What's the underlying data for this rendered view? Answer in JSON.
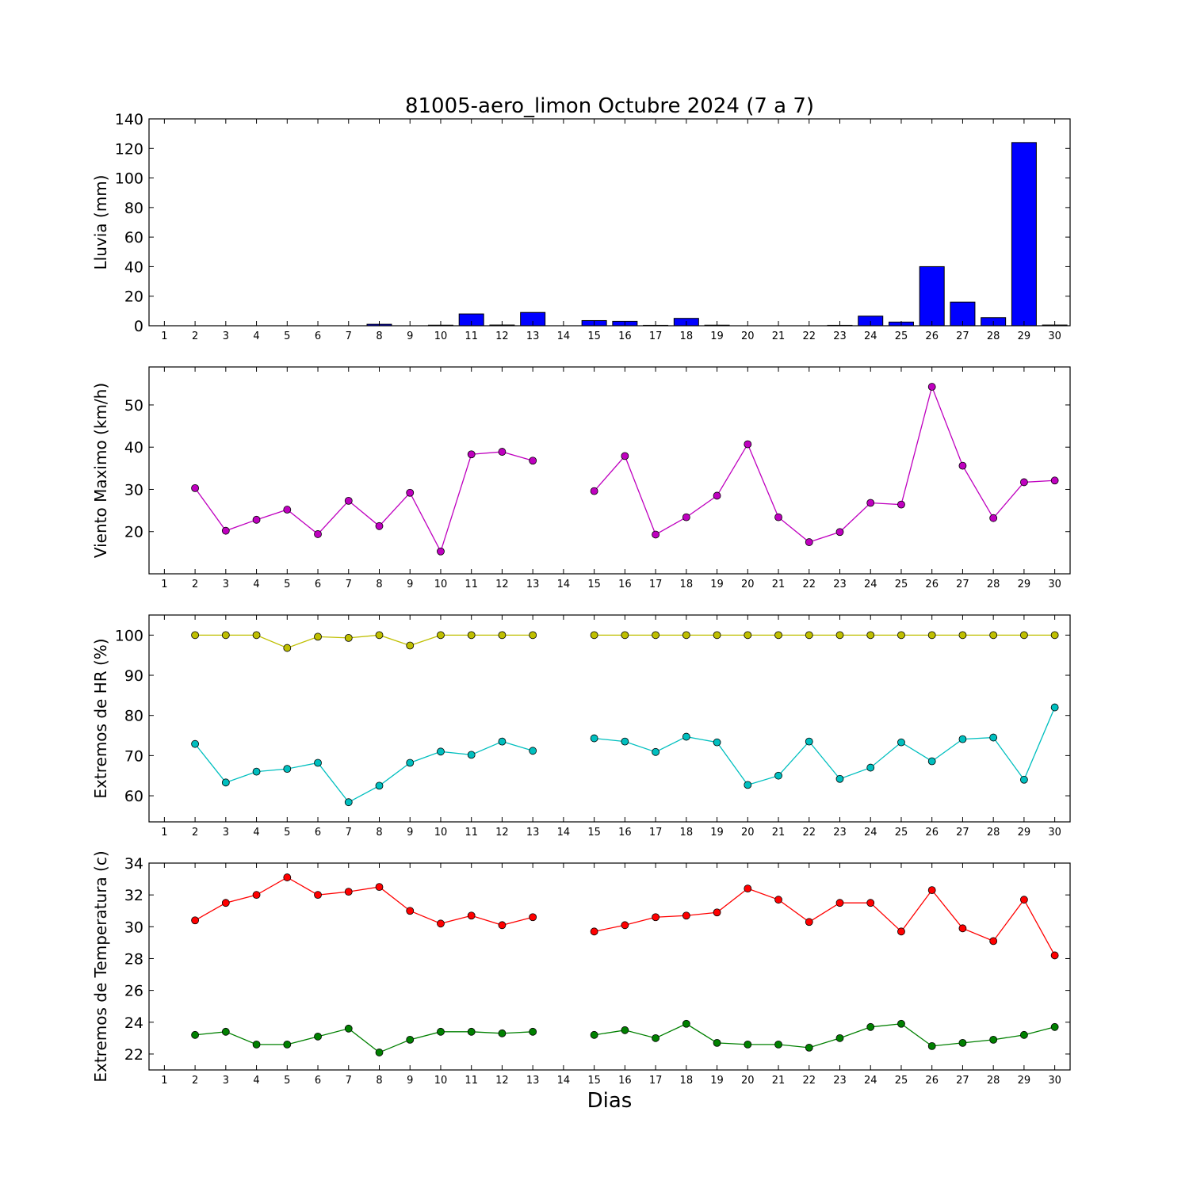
{
  "title": "81005-aero_limon Octubre 2024  (7 a 7)",
  "xlabel": "Dias",
  "x_ticks": [
    1,
    2,
    3,
    4,
    5,
    6,
    7,
    8,
    9,
    10,
    11,
    12,
    13,
    14,
    15,
    16,
    17,
    18,
    19,
    20,
    21,
    22,
    23,
    24,
    25,
    26,
    27,
    28,
    29,
    30
  ],
  "chart_data": [
    {
      "id": "lluvia",
      "type": "bar",
      "ylabel": "Lluvia (mm)",
      "ylim": [
        0,
        140
      ],
      "yticks": [
        0,
        20,
        40,
        60,
        80,
        100,
        120,
        140
      ],
      "xlim": [
        0.5,
        30.5
      ],
      "grid": false,
      "series": [
        {
          "color": "#0000ff",
          "x": [
            1,
            2,
            3,
            4,
            5,
            6,
            7,
            8,
            9,
            10,
            11,
            12,
            13,
            14,
            15,
            16,
            17,
            18,
            19,
            20,
            21,
            22,
            23,
            24,
            25,
            26,
            27,
            28,
            29,
            30
          ],
          "values": [
            0,
            0,
            0,
            0,
            0,
            0,
            0,
            1,
            0,
            0.4,
            8,
            0.5,
            9,
            0,
            3.5,
            3,
            0.3,
            5,
            0.4,
            0,
            0,
            0,
            0.3,
            6.5,
            2.5,
            40,
            16,
            5.5,
            124,
            0.5
          ]
        }
      ]
    },
    {
      "id": "viento",
      "type": "line",
      "ylabel": "Viento Maximo (km/h)",
      "ylim": [
        10,
        59
      ],
      "yticks": [
        20,
        30,
        40,
        50
      ],
      "xlim": [
        0.5,
        30.5
      ],
      "grid": false,
      "series": [
        {
          "color": "#bf00bf",
          "x": [
            1,
            2,
            3,
            4,
            5,
            6,
            7,
            8,
            9,
            10,
            11,
            12,
            13,
            14,
            15,
            16,
            17,
            18,
            19,
            20,
            21,
            22,
            23,
            24,
            25,
            26,
            27,
            28,
            29,
            30
          ],
          "values": [
            null,
            30.3,
            20.2,
            22.8,
            25.2,
            19.4,
            27.3,
            21.3,
            29.2,
            15.3,
            38.3,
            38.9,
            36.8,
            null,
            29.6,
            37.9,
            19.3,
            23.4,
            28.5,
            40.7,
            23.4,
            17.5,
            19.9,
            26.8,
            26.4,
            54.3,
            35.6,
            23.2,
            31.7,
            32.1
          ]
        }
      ]
    },
    {
      "id": "humedad",
      "type": "line",
      "ylabel": "Extremos de HR (%)",
      "ylim": [
        53.5,
        105
      ],
      "yticks": [
        60,
        70,
        80,
        90,
        100
      ],
      "xlim": [
        0.5,
        30.5
      ],
      "grid": false,
      "series": [
        {
          "color": "#bfbf00",
          "x": [
            1,
            2,
            3,
            4,
            5,
            6,
            7,
            8,
            9,
            10,
            11,
            12,
            13,
            14,
            15,
            16,
            17,
            18,
            19,
            20,
            21,
            22,
            23,
            24,
            25,
            26,
            27,
            28,
            29,
            30
          ],
          "values": [
            null,
            100,
            100,
            100,
            96.8,
            99.6,
            99.3,
            100,
            97.4,
            100,
            100,
            100,
            100,
            null,
            100,
            100,
            100,
            100,
            100,
            100,
            100,
            100,
            100,
            100,
            100,
            100,
            100,
            100,
            100,
            100
          ]
        },
        {
          "color": "#00bfbf",
          "x": [
            1,
            2,
            3,
            4,
            5,
            6,
            7,
            8,
            9,
            10,
            11,
            12,
            13,
            14,
            15,
            16,
            17,
            18,
            19,
            20,
            21,
            22,
            23,
            24,
            25,
            26,
            27,
            28,
            29,
            30
          ],
          "values": [
            null,
            72.9,
            63.3,
            66.0,
            66.7,
            68.2,
            58.4,
            62.5,
            68.2,
            71.0,
            70.2,
            73.5,
            71.2,
            null,
            74.3,
            73.5,
            70.9,
            74.7,
            73.3,
            62.7,
            65.0,
            73.5,
            64.2,
            67.0,
            73.3,
            68.6,
            74.1,
            74.5,
            64.0,
            82.0
          ]
        }
      ]
    },
    {
      "id": "temperatura",
      "type": "line",
      "ylabel": "Extremos de Temperatura (c)",
      "ylim": [
        21,
        34
      ],
      "yticks": [
        22,
        24,
        26,
        28,
        30,
        32,
        34
      ],
      "xlim": [
        0.5,
        30.5
      ],
      "grid": false,
      "series": [
        {
          "color": "#ff0000",
          "x": [
            1,
            2,
            3,
            4,
            5,
            6,
            7,
            8,
            9,
            10,
            11,
            12,
            13,
            14,
            15,
            16,
            17,
            18,
            19,
            20,
            21,
            22,
            23,
            24,
            25,
            26,
            27,
            28,
            29,
            30
          ],
          "values": [
            null,
            30.4,
            31.5,
            32.0,
            33.1,
            32.0,
            32.2,
            32.5,
            31.0,
            30.2,
            30.7,
            30.1,
            30.6,
            null,
            29.7,
            30.1,
            30.6,
            30.7,
            30.9,
            32.4,
            31.7,
            30.3,
            31.5,
            31.5,
            29.7,
            32.3,
            29.9,
            29.1,
            31.7,
            28.2
          ]
        },
        {
          "color": "#008000",
          "x": [
            1,
            2,
            3,
            4,
            5,
            6,
            7,
            8,
            9,
            10,
            11,
            12,
            13,
            14,
            15,
            16,
            17,
            18,
            19,
            20,
            21,
            22,
            23,
            24,
            25,
            26,
            27,
            28,
            29,
            30
          ],
          "values": [
            null,
            23.2,
            23.4,
            22.6,
            22.6,
            23.1,
            23.6,
            22.1,
            22.9,
            23.4,
            23.4,
            23.3,
            23.4,
            null,
            23.2,
            23.5,
            23.0,
            23.9,
            22.7,
            22.6,
            22.6,
            22.4,
            23.0,
            23.7,
            23.9,
            22.5,
            22.7,
            22.9,
            23.2,
            23.7
          ]
        }
      ]
    }
  ]
}
